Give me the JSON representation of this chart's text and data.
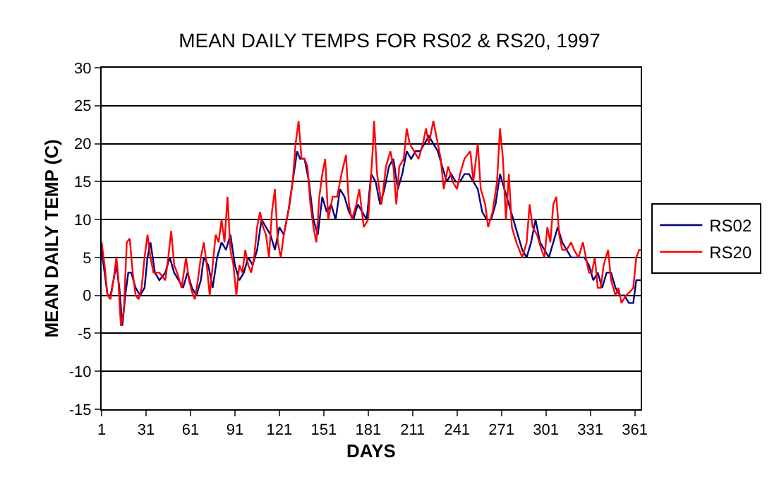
{
  "chart_data": {
    "type": "line",
    "title": "MEAN DAILY TEMPS FOR RS02 & RS20, 1997",
    "xlabel": "DAYS",
    "ylabel": "MEAN DAILY TEMP (C)",
    "xlim": [
      1,
      365
    ],
    "xticks": [
      1,
      31,
      61,
      91,
      121,
      151,
      181,
      211,
      241,
      271,
      301,
      331,
      361
    ],
    "ylim": [
      -15,
      30
    ],
    "yticks": [
      -15,
      -10,
      -5,
      0,
      5,
      10,
      15,
      20,
      25,
      30
    ],
    "grid": "y",
    "legend": "right",
    "marker": "none",
    "line_style": "solid",
    "series": [
      {
        "name": "RS02",
        "color": "#000080",
        "x": [
          1,
          3,
          5,
          7,
          9,
          11,
          13,
          15,
          17,
          19,
          21,
          24,
          27,
          30,
          32,
          34,
          37,
          40,
          44,
          47,
          50,
          53,
          56,
          59,
          62,
          65,
          68,
          70,
          73,
          76,
          79,
          82,
          85,
          88,
          91,
          94,
          97,
          100,
          103,
          106,
          109,
          112,
          115,
          118,
          121,
          124,
          127,
          130,
          133,
          135,
          138,
          141,
          144,
          147,
          150,
          153,
          156,
          159,
          162,
          165,
          168,
          171,
          174,
          177,
          180,
          183,
          186,
          189,
          192,
          195,
          198,
          201,
          204,
          207,
          210,
          213,
          216,
          219,
          222,
          225,
          228,
          231,
          234,
          237,
          240,
          243,
          246,
          249,
          252,
          255,
          258,
          261,
          264,
          267,
          270,
          273,
          276,
          279,
          282,
          285,
          288,
          291,
          294,
          297,
          300,
          303,
          306,
          309,
          312,
          315,
          318,
          321,
          324,
          327,
          330,
          333,
          336,
          339,
          342,
          345,
          348,
          351,
          354,
          357,
          360,
          362,
          365
        ],
        "values": [
          6,
          3,
          0,
          0,
          2,
          4,
          1,
          -4,
          0,
          3,
          3,
          1,
          0,
          1,
          5,
          7,
          3,
          2,
          3,
          5,
          3,
          2,
          1,
          3,
          1,
          0,
          2,
          5,
          4,
          1,
          5,
          7,
          6,
          8,
          4,
          2,
          3,
          5,
          4,
          6,
          10,
          9,
          8,
          6,
          9,
          8,
          11,
          15,
          19,
          18,
          18,
          15,
          10,
          8,
          13,
          11,
          12,
          10,
          14,
          13,
          11,
          10,
          12,
          11,
          10,
          16,
          15,
          12,
          14,
          17,
          18,
          14,
          16,
          19,
          18,
          19,
          19,
          20,
          21,
          20,
          19,
          17,
          15,
          16,
          15,
          15,
          16,
          16,
          15,
          14,
          11,
          10,
          10,
          12,
          16,
          14,
          12,
          10,
          8,
          6,
          5,
          7,
          10,
          7,
          6,
          5,
          7,
          9,
          7,
          6,
          5,
          5,
          5,
          5,
          4,
          2,
          3,
          1,
          3,
          3,
          1,
          0,
          0,
          -1,
          -1,
          2,
          2
        ]
      },
      {
        "name": "RS20",
        "color": "#ff0000",
        "x": [
          1,
          3,
          5,
          7,
          9,
          11,
          12,
          14,
          16,
          18,
          20,
          22,
          24,
          26,
          28,
          30,
          32,
          34,
          36,
          40,
          44,
          46,
          48,
          50,
          52,
          55,
          58,
          60,
          62,
          64,
          66,
          68,
          70,
          72,
          74,
          76,
          78,
          80,
          82,
          84,
          86,
          88,
          90,
          92,
          94,
          96,
          98,
          100,
          102,
          104,
          106,
          108,
          110,
          112,
          114,
          116,
          118,
          120,
          122,
          124,
          126,
          128,
          130,
          132,
          134,
          136,
          138,
          140,
          142,
          144,
          146,
          148,
          150,
          152,
          154,
          157,
          160,
          163,
          166,
          168,
          170,
          173,
          175,
          178,
          181,
          184,
          185,
          187,
          190,
          193,
          196,
          198,
          200,
          202,
          205,
          207,
          209,
          212,
          215,
          218,
          220,
          222,
          225,
          228,
          230,
          232,
          235,
          238,
          241,
          243,
          246,
          250,
          252,
          255,
          257,
          260,
          262,
          265,
          268,
          270,
          272,
          274,
          276,
          278,
          281,
          283,
          285,
          288,
          290,
          292,
          295,
          298,
          300,
          302,
          304,
          306,
          308,
          310,
          312,
          315,
          318,
          320,
          323,
          326,
          328,
          330,
          332,
          334,
          336,
          338,
          340,
          343,
          345,
          348,
          350,
          352,
          355,
          358,
          360,
          362,
          364,
          365
        ],
        "values": [
          7,
          4,
          0,
          -0.5,
          2,
          5,
          3,
          -4,
          -2,
          7,
          7.5,
          3,
          0,
          -0.5,
          1,
          5,
          8,
          5,
          3,
          3,
          2,
          5,
          8.5,
          4,
          3,
          1,
          5,
          2,
          0.5,
          -0.5,
          2,
          5,
          7,
          4,
          0,
          4,
          8,
          7,
          10,
          7,
          13,
          6,
          4,
          0,
          4,
          3,
          6,
          4,
          3,
          5,
          9,
          11,
          9,
          8,
          5,
          11,
          14,
          7,
          5,
          8,
          10,
          12,
          15,
          20,
          23,
          18,
          18,
          17,
          12,
          9,
          7,
          13,
          16,
          18,
          10,
          13,
          13,
          16,
          18.5,
          12,
          10,
          12,
          14,
          9,
          10,
          19,
          23,
          16,
          12,
          17,
          19,
          17,
          12,
          17,
          18,
          22,
          20,
          19,
          18,
          20,
          22,
          20,
          23,
          20,
          18,
          14,
          17,
          15,
          14,
          16,
          18,
          19,
          15,
          20,
          14,
          12,
          9,
          11,
          15,
          22,
          18,
          10,
          16,
          9,
          7,
          6,
          5,
          7,
          12,
          9,
          8,
          6,
          5,
          9,
          7,
          12,
          13,
          8,
          6,
          6,
          7,
          6,
          5,
          7,
          5,
          3,
          3,
          5,
          1,
          1,
          4,
          6,
          2,
          0,
          1,
          -1,
          0,
          0.5,
          1,
          5,
          6,
          6
        ]
      }
    ]
  }
}
